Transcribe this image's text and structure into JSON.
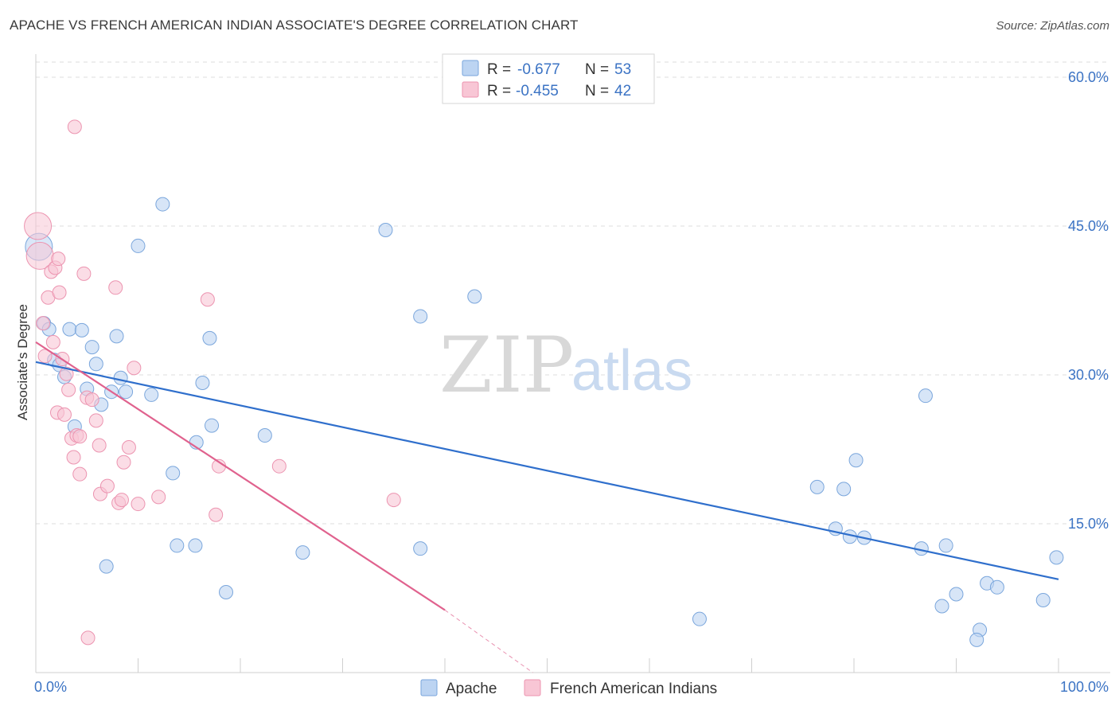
{
  "title": "APACHE VS FRENCH AMERICAN INDIAN ASSOCIATE'S DEGREE CORRELATION CHART",
  "source": "Source: ZipAtlas.com",
  "watermark": {
    "zip": "ZIP",
    "atlas": "atlas"
  },
  "legend_top": {
    "rows": [
      {
        "r_label": "R =",
        "r_value": "-0.677",
        "n_label": "N =",
        "n_value": "53"
      },
      {
        "r_label": "R =",
        "r_value": "-0.455",
        "n_label": "N =",
        "n_value": "42"
      }
    ]
  },
  "colors": {
    "apache_fill": "#bcd4f2",
    "apache_stroke": "#7aa6dc",
    "apache_line": "#2f6fcc",
    "french_fill": "#f8c6d5",
    "french_stroke": "#ec94b0",
    "french_line": "#e0628e",
    "grid": "#dddddd",
    "tick_text": "#3b73c4"
  },
  "chart_data": {
    "type": "scatter",
    "title": "APACHE VS FRENCH AMERICAN INDIAN ASSOCIATE'S DEGREE CORRELATION CHART",
    "xlabel": "",
    "ylabel": "Associate's Degree",
    "xlim": [
      0,
      100
    ],
    "ylim": [
      0,
      60
    ],
    "x_tick_labels": [
      "0.0%",
      "100.0%"
    ],
    "y_ticks": [
      15,
      30,
      45,
      60
    ],
    "y_tick_labels": [
      "15.0%",
      "30.0%",
      "45.0%",
      "60.0%"
    ],
    "grid": true,
    "legend_position": "top-center",
    "series": [
      {
        "name": "Apache",
        "R": -0.677,
        "N": 53,
        "trend": {
          "x": [
            0,
            100
          ],
          "y": [
            31.3,
            9.4
          ]
        },
        "points": [
          {
            "x": 0.3,
            "y": 42.9,
            "big": true
          },
          {
            "x": 0.8,
            "y": 35.2
          },
          {
            "x": 1.3,
            "y": 34.6
          },
          {
            "x": 1.8,
            "y": 31.5
          },
          {
            "x": 2.3,
            "y": 31.0
          },
          {
            "x": 2.8,
            "y": 29.8
          },
          {
            "x": 3.3,
            "y": 34.6
          },
          {
            "x": 3.8,
            "y": 24.8
          },
          {
            "x": 4.5,
            "y": 34.5
          },
          {
            "x": 5.0,
            "y": 28.6
          },
          {
            "x": 5.5,
            "y": 32.8
          },
          {
            "x": 5.9,
            "y": 31.1
          },
          {
            "x": 6.4,
            "y": 27.0
          },
          {
            "x": 6.9,
            "y": 10.7
          },
          {
            "x": 7.4,
            "y": 28.3
          },
          {
            "x": 7.9,
            "y": 33.9
          },
          {
            "x": 8.3,
            "y": 29.7
          },
          {
            "x": 8.8,
            "y": 28.3
          },
          {
            "x": 10.0,
            "y": 43.0
          },
          {
            "x": 11.3,
            "y": 28.0
          },
          {
            "x": 12.4,
            "y": 47.2
          },
          {
            "x": 13.4,
            "y": 20.1
          },
          {
            "x": 13.8,
            "y": 12.8
          },
          {
            "x": 15.7,
            "y": 23.2
          },
          {
            "x": 15.6,
            "y": 12.8
          },
          {
            "x": 16.3,
            "y": 29.2
          },
          {
            "x": 17.0,
            "y": 33.7
          },
          {
            "x": 17.2,
            "y": 24.9
          },
          {
            "x": 18.6,
            "y": 8.1
          },
          {
            "x": 22.4,
            "y": 23.9
          },
          {
            "x": 26.1,
            "y": 12.1
          },
          {
            "x": 34.2,
            "y": 44.6
          },
          {
            "x": 37.6,
            "y": 35.9
          },
          {
            "x": 37.6,
            "y": 12.5
          },
          {
            "x": 42.9,
            "y": 37.9
          },
          {
            "x": 64.9,
            "y": 5.4
          },
          {
            "x": 76.4,
            "y": 18.7
          },
          {
            "x": 78.2,
            "y": 14.5
          },
          {
            "x": 79.0,
            "y": 18.5
          },
          {
            "x": 79.6,
            "y": 13.7
          },
          {
            "x": 80.2,
            "y": 21.4
          },
          {
            "x": 81.0,
            "y": 13.6
          },
          {
            "x": 86.6,
            "y": 12.5
          },
          {
            "x": 87.0,
            "y": 27.9
          },
          {
            "x": 88.6,
            "y": 6.7
          },
          {
            "x": 89.0,
            "y": 12.8
          },
          {
            "x": 90.0,
            "y": 7.9
          },
          {
            "x": 92.3,
            "y": 4.3
          },
          {
            "x": 92.0,
            "y": 3.3
          },
          {
            "x": 93.0,
            "y": 9.0
          },
          {
            "x": 94.0,
            "y": 8.6
          },
          {
            "x": 98.5,
            "y": 7.3
          },
          {
            "x": 99.8,
            "y": 11.6
          }
        ]
      },
      {
        "name": "French American Indians",
        "R": -0.455,
        "N": 42,
        "trend": {
          "x": [
            0,
            40.0
          ],
          "y": [
            33.3,
            6.3
          ],
          "dash_to": {
            "x": 48.6,
            "y": 0
          }
        },
        "points": [
          {
            "x": 0.2,
            "y": 45.0,
            "big": true
          },
          {
            "x": 0.4,
            "y": 42.0,
            "big": true
          },
          {
            "x": 0.7,
            "y": 35.2
          },
          {
            "x": 0.9,
            "y": 31.9
          },
          {
            "x": 1.2,
            "y": 37.8
          },
          {
            "x": 1.5,
            "y": 40.4
          },
          {
            "x": 1.7,
            "y": 33.3
          },
          {
            "x": 1.9,
            "y": 40.8
          },
          {
            "x": 2.1,
            "y": 26.2
          },
          {
            "x": 2.3,
            "y": 38.3
          },
          {
            "x": 2.2,
            "y": 41.7
          },
          {
            "x": 2.6,
            "y": 31.6
          },
          {
            "x": 2.8,
            "y": 26.0
          },
          {
            "x": 3.0,
            "y": 30.1
          },
          {
            "x": 3.2,
            "y": 28.5
          },
          {
            "x": 3.5,
            "y": 23.6
          },
          {
            "x": 3.7,
            "y": 21.7
          },
          {
            "x": 4.0,
            "y": 23.9
          },
          {
            "x": 4.3,
            "y": 20.0
          },
          {
            "x": 4.3,
            "y": 23.8
          },
          {
            "x": 3.8,
            "y": 55.0
          },
          {
            "x": 4.7,
            "y": 40.2
          },
          {
            "x": 5.0,
            "y": 27.7
          },
          {
            "x": 5.1,
            "y": 3.5
          },
          {
            "x": 5.5,
            "y": 27.5
          },
          {
            "x": 5.9,
            "y": 25.4
          },
          {
            "x": 6.3,
            "y": 18.0
          },
          {
            "x": 6.2,
            "y": 22.9
          },
          {
            "x": 7.0,
            "y": 18.8
          },
          {
            "x": 7.8,
            "y": 38.8
          },
          {
            "x": 8.1,
            "y": 17.1
          },
          {
            "x": 8.4,
            "y": 17.4
          },
          {
            "x": 8.6,
            "y": 21.2
          },
          {
            "x": 9.1,
            "y": 22.7
          },
          {
            "x": 9.6,
            "y": 30.7
          },
          {
            "x": 12.0,
            "y": 17.7
          },
          {
            "x": 16.8,
            "y": 37.6
          },
          {
            "x": 17.6,
            "y": 15.9
          },
          {
            "x": 17.9,
            "y": 20.8
          },
          {
            "x": 23.8,
            "y": 20.8
          },
          {
            "x": 35.0,
            "y": 17.4
          },
          {
            "x": 10.0,
            "y": 17.0
          }
        ]
      }
    ]
  }
}
